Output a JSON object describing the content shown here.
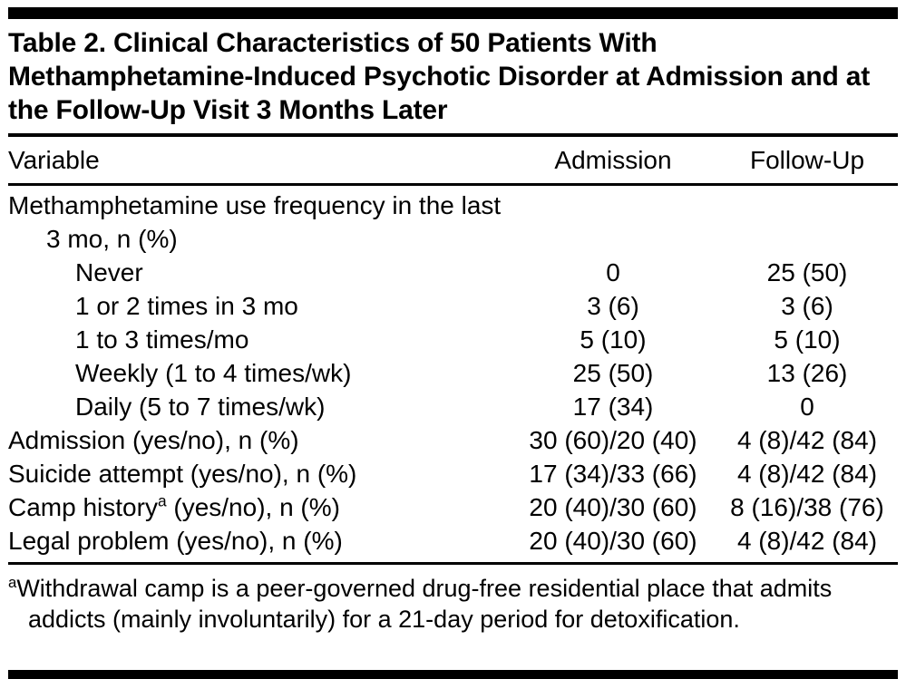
{
  "colors": {
    "text": "#000000",
    "rule": "#000000",
    "background": "#ffffff"
  },
  "table": {
    "title": "Table 2. Clinical Characteristics of 50 Patients With Methamphetamine-Induced Psychotic Disorder at Admission and at the Follow-Up Visit 3 Months Later",
    "columns": [
      "Variable",
      "Admission",
      "Follow-Up"
    ],
    "rows": [
      {
        "indent": 0,
        "label": "Methamphetamine use frequency in the last 3 mo, n (%)",
        "admission": "",
        "followup": ""
      },
      {
        "indent": 1,
        "label": "Never",
        "admission": "0",
        "followup": "25 (50)"
      },
      {
        "indent": 1,
        "label": "1 or 2 times in 3 mo",
        "admission": "3 (6)",
        "followup": "3 (6)"
      },
      {
        "indent": 1,
        "label": "1 to 3 times/mo",
        "admission": "5 (10)",
        "followup": "5 (10)"
      },
      {
        "indent": 1,
        "label": "Weekly (1 to 4 times/wk)",
        "admission": "25 (50)",
        "followup": "13 (26)"
      },
      {
        "indent": 1,
        "label": "Daily (5 to 7 times/wk)",
        "admission": "17 (34)",
        "followup": "0"
      },
      {
        "indent": 0,
        "label": "Admission (yes/no), n (%)",
        "admission": "30 (60)/20 (40)",
        "followup": "4 (8)/42 (84)"
      },
      {
        "indent": 0,
        "label": "Suicide attempt (yes/no), n (%)",
        "admission": "17 (34)/33 (66)",
        "followup": "4 (8)/42 (84)"
      },
      {
        "indent": 0,
        "label": "Camp history",
        "sup": "a",
        "label_suffix": " (yes/no), n (%)",
        "admission": "20 (40)/30 (60)",
        "followup": "8 (16)/38 (76)"
      },
      {
        "indent": 0,
        "label": "Legal problem (yes/no), n (%)",
        "admission": "20 (40)/30 (60)",
        "followup": "4 (8)/42 (84)"
      }
    ],
    "footnote": {
      "marker": "a",
      "text": "Withdrawal camp is a peer-governed drug-free residential place that admits addicts (mainly involuntarily) for a 21-day period for detoxification."
    }
  }
}
